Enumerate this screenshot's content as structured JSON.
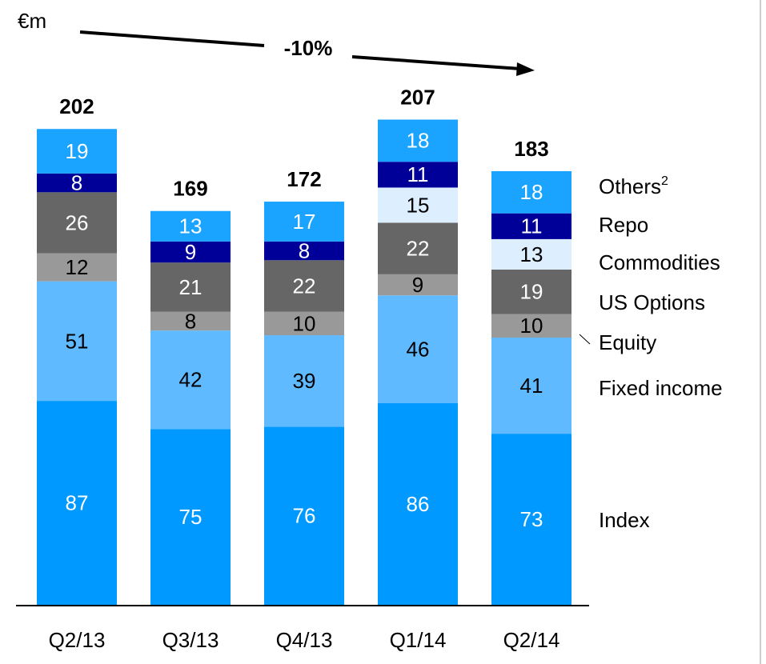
{
  "chart_data": {
    "type": "stacked_bar",
    "unit": "€m",
    "annotation": "-10%",
    "categories": [
      "Q2/13",
      "Q3/13",
      "Q4/13",
      "Q1/14",
      "Q2/14"
    ],
    "totals": [
      202,
      169,
      172,
      207,
      183
    ],
    "series": [
      {
        "name": "Index",
        "color": "#0099ff",
        "label_color": "#ffffff",
        "values": [
          87,
          75,
          76,
          86,
          73
        ]
      },
      {
        "name": "Fixed income",
        "color": "#5fbaff",
        "label_color": "#000000",
        "values": [
          51,
          42,
          39,
          46,
          41
        ]
      },
      {
        "name": "Equity",
        "color": "#999999",
        "label_color": "#000000",
        "values": [
          12,
          8,
          10,
          9,
          10
        ]
      },
      {
        "name": "US Options",
        "color": "#666666",
        "label_color": "#ffffff",
        "values": [
          26,
          21,
          22,
          22,
          19
        ]
      },
      {
        "name": "Commodities",
        "color": "#ddeeff",
        "label_color": "#000000",
        "values": [
          null,
          null,
          null,
          15,
          13
        ]
      },
      {
        "name": "Repo",
        "color": "#000099",
        "label_color": "#ffffff",
        "values": [
          8,
          9,
          8,
          11,
          11
        ]
      },
      {
        "name": "Others",
        "name_superscript": "2",
        "color": "#1aa3ff",
        "label_color": "#ffffff",
        "values": [
          19,
          13,
          17,
          18,
          18
        ]
      }
    ]
  }
}
